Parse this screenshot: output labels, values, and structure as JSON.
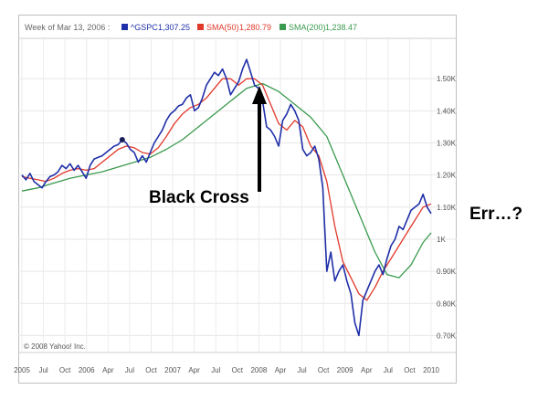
{
  "chart_data": {
    "type": "line",
    "legend": {
      "date_label": "Week of Mar 13, 2006 :",
      "items": [
        {
          "key": "^GSPC",
          "value": "1,307.25",
          "color": "#1f2fa8"
        },
        {
          "key": "SMA(50)",
          "value": "1,280.79",
          "color": "#e0382a"
        },
        {
          "key": "SMA(200)",
          "value": "1,238.47",
          "color": "#3a9a4e"
        }
      ]
    },
    "x_tick_labels": [
      "2005",
      "Jul",
      "Oct",
      "2006",
      "Apr",
      "Jul",
      "Oct",
      "2007",
      "Apr",
      "Jul",
      "Oct",
      "2008",
      "Apr",
      "Jul",
      "Oct",
      "2009",
      "Apr",
      "Jul",
      "Oct",
      "2010"
    ],
    "y_tick_labels": [
      {
        "value": 1500,
        "label": "1.50K"
      },
      {
        "value": 1400,
        "label": "1.40K"
      },
      {
        "value": 1300,
        "label": "1.30K"
      },
      {
        "value": 1200,
        "label": "1.20K"
      },
      {
        "value": 1100,
        "label": "1.10K"
      },
      {
        "value": 1000,
        "label": "1K"
      },
      {
        "value": 900,
        "label": "0.90K"
      },
      {
        "value": 800,
        "label": "0.80K"
      },
      {
        "value": 700,
        "label": "0.70K"
      }
    ],
    "xlim": [
      2005.0,
      2010.1
    ],
    "ylim": [
      650,
      1620
    ],
    "grid": true,
    "watermark": "© 2008 Yahoo! Inc.",
    "annotations": {
      "cross": "Black Cross",
      "err": "Err…?"
    },
    "series": [
      {
        "key": "gspc",
        "color": "#1f2fa8",
        "points": [
          [
            2005.0,
            1200
          ],
          [
            2005.05,
            1185
          ],
          [
            2005.1,
            1205
          ],
          [
            2005.15,
            1180
          ],
          [
            2005.2,
            1170
          ],
          [
            2005.25,
            1160
          ],
          [
            2005.3,
            1180
          ],
          [
            2005.35,
            1195
          ],
          [
            2005.4,
            1200
          ],
          [
            2005.45,
            1210
          ],
          [
            2005.5,
            1230
          ],
          [
            2005.55,
            1220
          ],
          [
            2005.6,
            1235
          ],
          [
            2005.65,
            1215
          ],
          [
            2005.7,
            1230
          ],
          [
            2005.75,
            1210
          ],
          [
            2005.8,
            1190
          ],
          [
            2005.85,
            1230
          ],
          [
            2005.9,
            1250
          ],
          [
            2005.95,
            1255
          ],
          [
            2006.0,
            1260
          ],
          [
            2006.05,
            1270
          ],
          [
            2006.1,
            1280
          ],
          [
            2006.15,
            1290
          ],
          [
            2006.2,
            1295
          ],
          [
            2006.25,
            1310
          ],
          [
            2006.3,
            1300
          ],
          [
            2006.35,
            1280
          ],
          [
            2006.4,
            1270
          ],
          [
            2006.45,
            1240
          ],
          [
            2006.5,
            1260
          ],
          [
            2006.55,
            1240
          ],
          [
            2006.6,
            1270
          ],
          [
            2006.65,
            1300
          ],
          [
            2006.7,
            1320
          ],
          [
            2006.75,
            1340
          ],
          [
            2006.8,
            1370
          ],
          [
            2006.85,
            1390
          ],
          [
            2006.9,
            1400
          ],
          [
            2006.95,
            1415
          ],
          [
            2007.0,
            1420
          ],
          [
            2007.05,
            1440
          ],
          [
            2007.1,
            1450
          ],
          [
            2007.15,
            1400
          ],
          [
            2007.2,
            1410
          ],
          [
            2007.25,
            1440
          ],
          [
            2007.3,
            1480
          ],
          [
            2007.35,
            1500
          ],
          [
            2007.4,
            1520
          ],
          [
            2007.45,
            1510
          ],
          [
            2007.5,
            1530
          ],
          [
            2007.55,
            1500
          ],
          [
            2007.6,
            1450
          ],
          [
            2007.65,
            1470
          ],
          [
            2007.7,
            1490
          ],
          [
            2007.75,
            1530
          ],
          [
            2007.8,
            1560
          ],
          [
            2007.85,
            1520
          ],
          [
            2007.9,
            1480
          ],
          [
            2007.95,
            1470
          ],
          [
            2008.0,
            1430
          ],
          [
            2008.05,
            1350
          ],
          [
            2008.1,
            1340
          ],
          [
            2008.15,
            1320
          ],
          [
            2008.2,
            1290
          ],
          [
            2008.25,
            1370
          ],
          [
            2008.3,
            1390
          ],
          [
            2008.35,
            1420
          ],
          [
            2008.4,
            1400
          ],
          [
            2008.45,
            1370
          ],
          [
            2008.5,
            1280
          ],
          [
            2008.55,
            1260
          ],
          [
            2008.6,
            1270
          ],
          [
            2008.65,
            1290
          ],
          [
            2008.7,
            1250
          ],
          [
            2008.75,
            1160
          ],
          [
            2008.8,
            900
          ],
          [
            2008.85,
            960
          ],
          [
            2008.9,
            870
          ],
          [
            2008.95,
            900
          ],
          [
            2009.0,
            920
          ],
          [
            2009.05,
            870
          ],
          [
            2009.1,
            830
          ],
          [
            2009.15,
            740
          ],
          [
            2009.2,
            700
          ],
          [
            2009.25,
            810
          ],
          [
            2009.3,
            840
          ],
          [
            2009.35,
            870
          ],
          [
            2009.4,
            900
          ],
          [
            2009.45,
            920
          ],
          [
            2009.5,
            890
          ],
          [
            2009.55,
            940
          ],
          [
            2009.6,
            980
          ],
          [
            2009.65,
            1000
          ],
          [
            2009.7,
            1040
          ],
          [
            2009.75,
            1030
          ],
          [
            2009.8,
            1060
          ],
          [
            2009.85,
            1090
          ],
          [
            2009.9,
            1100
          ],
          [
            2009.95,
            1110
          ],
          [
            2010.0,
            1140
          ],
          [
            2010.05,
            1100
          ],
          [
            2010.1,
            1080
          ]
        ]
      },
      {
        "key": "sma50",
        "color": "#e0382a",
        "points": [
          [
            2005.0,
            1195
          ],
          [
            2005.1,
            1190
          ],
          [
            2005.2,
            1185
          ],
          [
            2005.3,
            1180
          ],
          [
            2005.4,
            1190
          ],
          [
            2005.5,
            1205
          ],
          [
            2005.6,
            1215
          ],
          [
            2005.7,
            1220
          ],
          [
            2005.8,
            1215
          ],
          [
            2005.9,
            1220
          ],
          [
            2006.0,
            1240
          ],
          [
            2006.1,
            1260
          ],
          [
            2006.2,
            1280
          ],
          [
            2006.3,
            1290
          ],
          [
            2006.4,
            1285
          ],
          [
            2006.5,
            1270
          ],
          [
            2006.6,
            1265
          ],
          [
            2006.7,
            1285
          ],
          [
            2006.8,
            1320
          ],
          [
            2006.9,
            1360
          ],
          [
            2007.0,
            1390
          ],
          [
            2007.1,
            1410
          ],
          [
            2007.2,
            1420
          ],
          [
            2007.3,
            1440
          ],
          [
            2007.4,
            1470
          ],
          [
            2007.5,
            1500
          ],
          [
            2007.6,
            1500
          ],
          [
            2007.7,
            1480
          ],
          [
            2007.8,
            1500
          ],
          [
            2007.9,
            1500
          ],
          [
            2008.0,
            1480
          ],
          [
            2008.1,
            1420
          ],
          [
            2008.2,
            1360
          ],
          [
            2008.3,
            1340
          ],
          [
            2008.4,
            1370
          ],
          [
            2008.5,
            1350
          ],
          [
            2008.6,
            1290
          ],
          [
            2008.7,
            1260
          ],
          [
            2008.8,
            1180
          ],
          [
            2008.9,
            1040
          ],
          [
            2009.0,
            930
          ],
          [
            2009.1,
            880
          ],
          [
            2009.2,
            830
          ],
          [
            2009.3,
            810
          ],
          [
            2009.4,
            850
          ],
          [
            2009.5,
            900
          ],
          [
            2009.6,
            940
          ],
          [
            2009.7,
            980
          ],
          [
            2009.8,
            1020
          ],
          [
            2009.9,
            1060
          ],
          [
            2010.0,
            1100
          ],
          [
            2010.1,
            1110
          ]
        ]
      },
      {
        "key": "sma200",
        "color": "#3a9a4e",
        "points": [
          [
            2005.0,
            1150
          ],
          [
            2005.2,
            1160
          ],
          [
            2005.4,
            1175
          ],
          [
            2005.6,
            1190
          ],
          [
            2005.8,
            1200
          ],
          [
            2006.0,
            1210
          ],
          [
            2006.2,
            1225
          ],
          [
            2006.4,
            1240
          ],
          [
            2006.6,
            1255
          ],
          [
            2006.8,
            1280
          ],
          [
            2007.0,
            1310
          ],
          [
            2007.2,
            1350
          ],
          [
            2007.4,
            1390
          ],
          [
            2007.6,
            1430
          ],
          [
            2007.8,
            1470
          ],
          [
            2008.0,
            1485
          ],
          [
            2008.2,
            1460
          ],
          [
            2008.4,
            1420
          ],
          [
            2008.6,
            1380
          ],
          [
            2008.8,
            1320
          ],
          [
            2009.0,
            1200
          ],
          [
            2009.2,
            1080
          ],
          [
            2009.4,
            960
          ],
          [
            2009.55,
            890
          ],
          [
            2009.7,
            880
          ],
          [
            2009.85,
            920
          ],
          [
            2010.0,
            990
          ],
          [
            2010.1,
            1020
          ]
        ]
      }
    ]
  }
}
